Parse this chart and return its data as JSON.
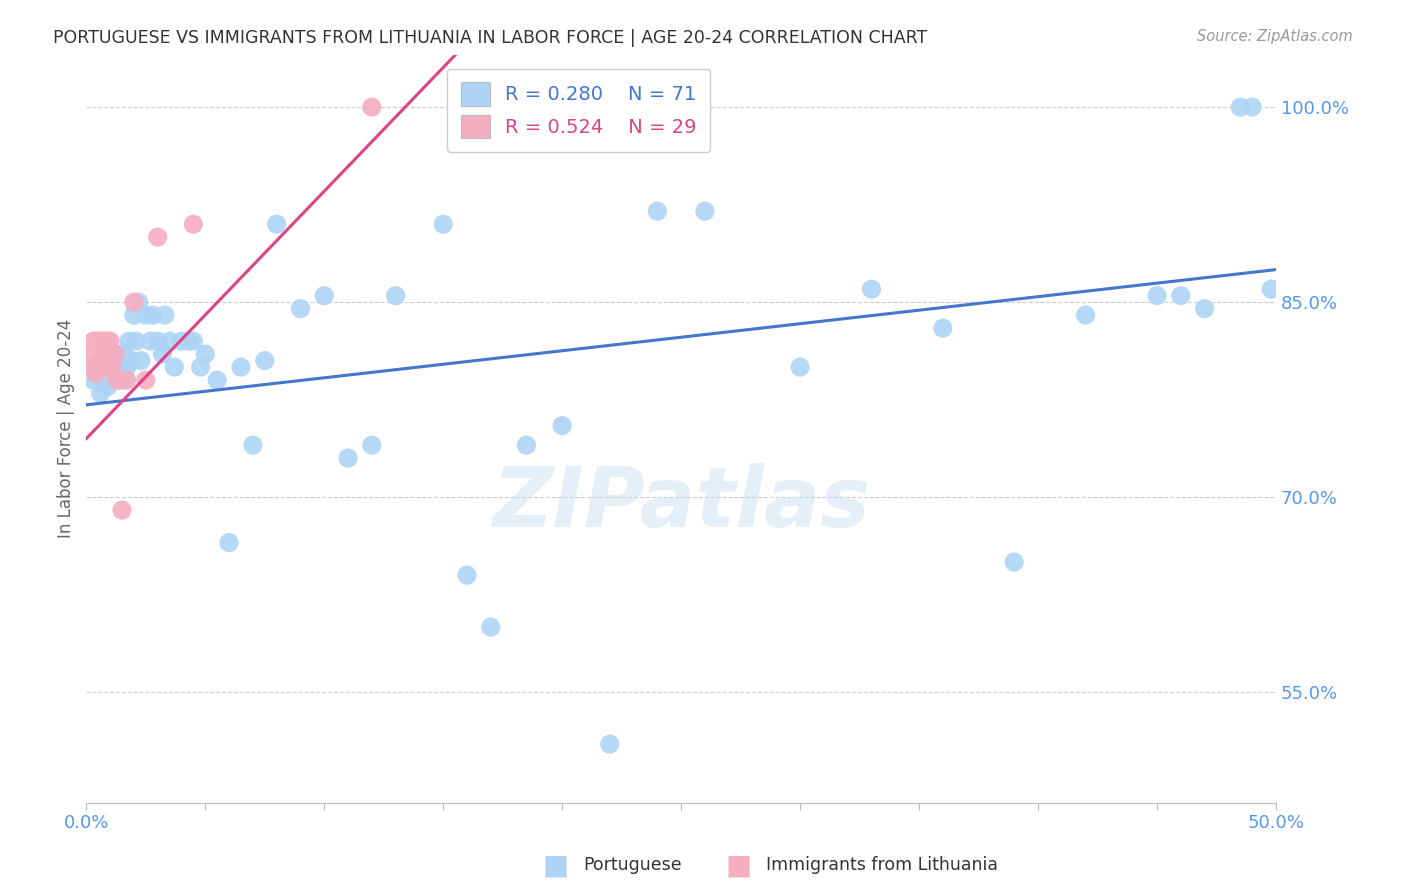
{
  "title": "PORTUGUESE VS IMMIGRANTS FROM LITHUANIA IN LABOR FORCE | AGE 20-24 CORRELATION CHART",
  "source": "Source: ZipAtlas.com",
  "ylabel": "In Labor Force | Age 20-24",
  "yticks": [
    "100.0%",
    "85.0%",
    "70.0%",
    "55.0%"
  ],
  "ytick_vals": [
    1.0,
    0.85,
    0.7,
    0.55
  ],
  "xmin": 0.0,
  "xmax": 0.5,
  "ymin": 0.465,
  "ymax": 1.04,
  "blue_R": 0.28,
  "blue_N": 71,
  "pink_R": 0.524,
  "pink_N": 29,
  "blue_color": "#add4f5",
  "blue_line_color": "#4477cc",
  "pink_color": "#f5adc0",
  "pink_line_color": "#dd4488",
  "title_color": "#333333",
  "axis_color": "#5599ee",
  "watermark": "ZIPatlas",
  "blue_scatter_x": [
    0.003,
    0.004,
    0.005,
    0.006,
    0.006,
    0.007,
    0.007,
    0.008,
    0.008,
    0.009,
    0.009,
    0.01,
    0.011,
    0.012,
    0.012,
    0.013,
    0.014,
    0.015,
    0.015,
    0.016,
    0.016,
    0.017,
    0.018,
    0.019,
    0.02,
    0.021,
    0.022,
    0.023,
    0.025,
    0.027,
    0.028,
    0.03,
    0.032,
    0.033,
    0.035,
    0.037,
    0.04,
    0.043,
    0.045,
    0.048,
    0.05,
    0.055,
    0.06,
    0.065,
    0.07,
    0.075,
    0.08,
    0.09,
    0.1,
    0.11,
    0.12,
    0.13,
    0.15,
    0.16,
    0.17,
    0.185,
    0.2,
    0.22,
    0.24,
    0.26,
    0.3,
    0.33,
    0.36,
    0.39,
    0.42,
    0.45,
    0.46,
    0.47,
    0.485,
    0.49,
    0.498
  ],
  "blue_scatter_y": [
    0.79,
    0.8,
    0.795,
    0.805,
    0.78,
    0.8,
    0.81,
    0.795,
    0.805,
    0.8,
    0.785,
    0.805,
    0.8,
    0.79,
    0.81,
    0.8,
    0.79,
    0.8,
    0.81,
    0.79,
    0.81,
    0.8,
    0.82,
    0.805,
    0.84,
    0.82,
    0.85,
    0.805,
    0.84,
    0.82,
    0.84,
    0.82,
    0.81,
    0.84,
    0.82,
    0.8,
    0.82,
    0.82,
    0.82,
    0.8,
    0.81,
    0.79,
    0.665,
    0.8,
    0.74,
    0.805,
    0.91,
    0.845,
    0.855,
    0.73,
    0.74,
    0.855,
    0.91,
    0.64,
    0.6,
    0.74,
    0.755,
    0.51,
    0.92,
    0.92,
    0.8,
    0.86,
    0.83,
    0.65,
    0.84,
    0.855,
    0.855,
    0.845,
    1.0,
    1.0,
    0.86
  ],
  "pink_scatter_x": [
    0.002,
    0.003,
    0.003,
    0.004,
    0.005,
    0.005,
    0.006,
    0.006,
    0.007,
    0.007,
    0.007,
    0.008,
    0.008,
    0.008,
    0.009,
    0.009,
    0.009,
    0.01,
    0.01,
    0.011,
    0.012,
    0.013,
    0.015,
    0.017,
    0.02,
    0.025,
    0.03,
    0.045,
    0.12
  ],
  "pink_scatter_y": [
    0.81,
    0.8,
    0.82,
    0.795,
    0.8,
    0.82,
    0.8,
    0.82,
    0.8,
    0.81,
    0.82,
    0.81,
    0.8,
    0.82,
    0.8,
    0.81,
    0.82,
    0.8,
    0.82,
    0.8,
    0.81,
    0.79,
    0.69,
    0.79,
    0.85,
    0.79,
    0.9,
    0.91,
    1.0
  ],
  "blue_line_x": [
    0.0,
    0.5
  ],
  "blue_line_y": [
    0.771,
    0.875
  ],
  "pink_line_x": [
    0.0,
    0.155
  ],
  "pink_line_y": [
    0.745,
    1.04
  ]
}
